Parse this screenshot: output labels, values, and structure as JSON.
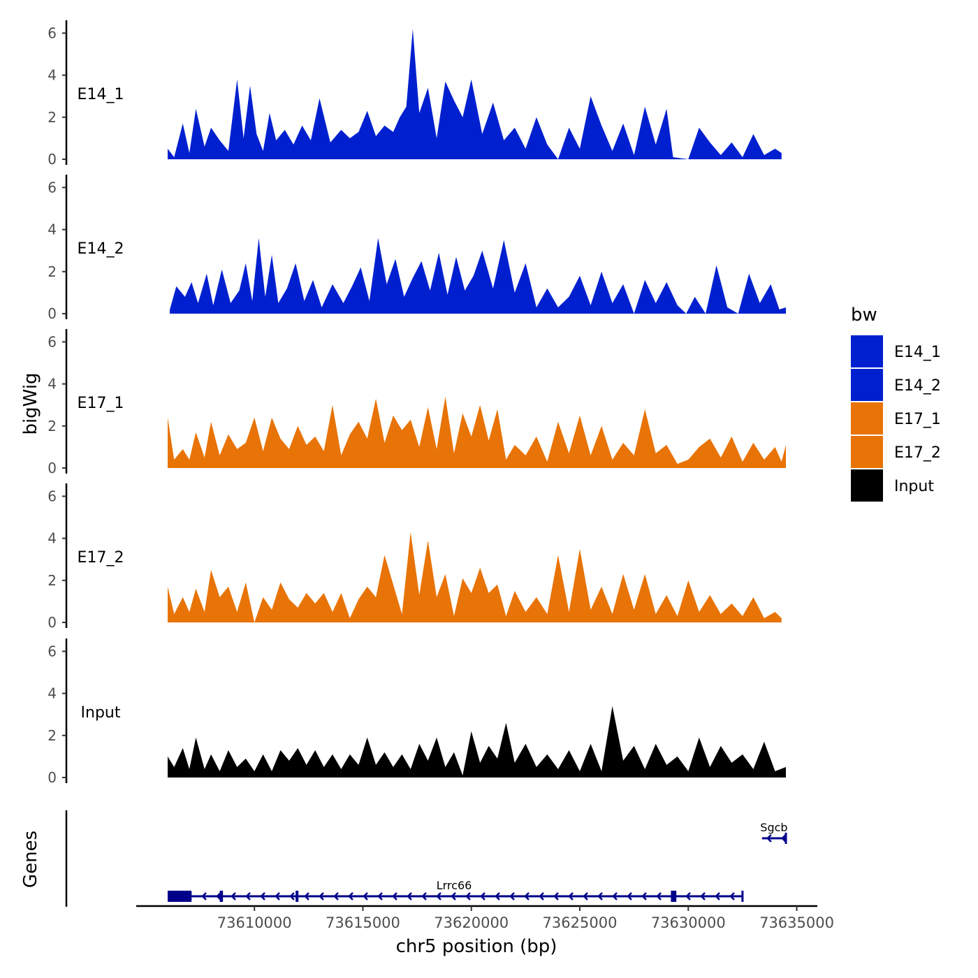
{
  "chart_data": {
    "type": "area",
    "title": "",
    "ylabel": "bigWig",
    "xlabel": "chr5 position (bp)",
    "ylim": [
      0,
      6.5
    ],
    "y_ticks": [
      0,
      2,
      4,
      6
    ],
    "xlim": [
      73606000,
      73634500
    ],
    "x_ticks": [
      73610000,
      73615000,
      73620000,
      73625000,
      73630000,
      73635000
    ],
    "x_tick_labels": [
      "73610000",
      "73615000",
      "73620000",
      "73625000",
      "73630000",
      "73635000"
    ],
    "legend": {
      "title": "bw",
      "position": "right",
      "entries": [
        {
          "label": "E14_1",
          "color": "#0020d0"
        },
        {
          "label": "E14_2",
          "color": "#0020d0"
        },
        {
          "label": "E17_1",
          "color": "#e87306"
        },
        {
          "label": "E17_2",
          "color": "#e87306"
        },
        {
          "label": "Input",
          "color": "#000000"
        }
      ]
    },
    "series": [
      {
        "name": "E14_1",
        "color": "#0020d0",
        "x": [
          73606000,
          73606300,
          73606700,
          73607000,
          73607300,
          73607700,
          73608000,
          73608400,
          73608800,
          73609200,
          73609500,
          73609800,
          73610100,
          73610400,
          73610700,
          73611000,
          73611400,
          73611800,
          73612200,
          73612600,
          73613000,
          73613500,
          73614000,
          73614400,
          73614800,
          73615200,
          73615600,
          73616000,
          73616400,
          73616700,
          73617000,
          73617300,
          73617600,
          73618000,
          73618400,
          73618800,
          73619200,
          73619600,
          73620000,
          73620500,
          73621000,
          73621500,
          73622000,
          73622500,
          73623000,
          73623500,
          73624000,
          73624500,
          73625000,
          73625500,
          73626000,
          73626500,
          73627000,
          73627500,
          73628000,
          73628500,
          73629000,
          73629300,
          73630000,
          73630500,
          73631000,
          73631500,
          73632000,
          73632500,
          73633000,
          73633500,
          73634000,
          73634300
        ],
        "y": [
          0.5,
          0.1,
          1.7,
          0.3,
          2.4,
          0.6,
          1.5,
          0.9,
          0.4,
          3.8,
          1.0,
          3.5,
          1.2,
          0.4,
          2.2,
          0.9,
          1.4,
          0.7,
          1.6,
          0.9,
          2.9,
          0.8,
          1.4,
          1.0,
          1.3,
          2.3,
          1.1,
          1.6,
          1.3,
          2.0,
          2.5,
          6.2,
          2.2,
          3.4,
          1.0,
          3.7,
          2.8,
          2.0,
          3.8,
          1.2,
          2.7,
          0.9,
          1.5,
          0.5,
          2.0,
          0.7,
          0.0,
          1.5,
          0.5,
          3.0,
          1.6,
          0.4,
          1.7,
          0.2,
          2.5,
          0.7,
          2.4,
          0.1,
          0.0,
          1.5,
          0.8,
          0.2,
          0.8,
          0.1,
          1.2,
          0.2,
          0.5,
          0.3
        ]
      },
      {
        "name": "E14_2",
        "color": "#0020d0",
        "x": [
          73606100,
          73606400,
          73606800,
          73607100,
          73607400,
          73607800,
          73608100,
          73608500,
          73608900,
          73609300,
          73609600,
          73609900,
          73610200,
          73610500,
          73610800,
          73611100,
          73611500,
          73611900,
          73612300,
          73612700,
          73613100,
          73613600,
          73614100,
          73614500,
          73614900,
          73615300,
          73615700,
          73616100,
          73616500,
          73616900,
          73617300,
          73617700,
          73618100,
          73618500,
          73618900,
          73619300,
          73619700,
          73620100,
          73620500,
          73621000,
          73621500,
          73622000,
          73622500,
          73623000,
          73623500,
          73624000,
          73624500,
          73625000,
          73625500,
          73626000,
          73626500,
          73627000,
          73627500,
          73628000,
          73628500,
          73629000,
          73629500,
          73629900,
          73630300,
          73630800,
          73631300,
          73631800,
          73632300,
          73632800,
          73633300,
          73633800,
          73634200,
          73634500
        ],
        "y": [
          0.2,
          1.3,
          0.8,
          1.5,
          0.5,
          1.9,
          0.4,
          2.1,
          0.5,
          1.1,
          2.4,
          0.6,
          3.6,
          0.8,
          2.8,
          0.5,
          1.2,
          2.4,
          0.6,
          1.6,
          0.3,
          1.4,
          0.5,
          1.3,
          2.2,
          0.6,
          3.6,
          1.4,
          2.6,
          0.8,
          1.7,
          2.5,
          1.1,
          2.9,
          0.9,
          2.7,
          1.1,
          1.8,
          3.0,
          1.2,
          3.5,
          1.0,
          2.4,
          0.3,
          1.2,
          0.3,
          0.8,
          1.8,
          0.4,
          2.0,
          0.5,
          1.4,
          0.0,
          1.6,
          0.5,
          1.5,
          0.4,
          0.0,
          0.8,
          0.0,
          2.3,
          0.3,
          0.0,
          1.9,
          0.5,
          1.4,
          0.2,
          0.3
        ]
      },
      {
        "name": "E17_1",
        "color": "#e87306",
        "x": [
          73606000,
          73606300,
          73606700,
          73607000,
          73607300,
          73607700,
          73608000,
          73608400,
          73608800,
          73609200,
          73609600,
          73610000,
          73610400,
          73610800,
          73611200,
          73611600,
          73612000,
          73612400,
          73612800,
          73613200,
          73613600,
          73614000,
          73614400,
          73614800,
          73615200,
          73615600,
          73616000,
          73616400,
          73616800,
          73617200,
          73617600,
          73618000,
          73618400,
          73618800,
          73619200,
          73619600,
          73620000,
          73620400,
          73620800,
          73621200,
          73621600,
          73622000,
          73622500,
          73623000,
          73623500,
          73624000,
          73624500,
          73625000,
          73625500,
          73626000,
          73626500,
          73627000,
          73627500,
          73628000,
          73628500,
          73629000,
          73629500,
          73630000,
          73630500,
          73631000,
          73631500,
          73632000,
          73632500,
          73633000,
          73633500,
          73634000,
          73634300,
          73634500
        ],
        "y": [
          2.4,
          0.4,
          0.9,
          0.4,
          1.7,
          0.5,
          2.2,
          0.6,
          1.6,
          0.9,
          1.2,
          2.4,
          0.8,
          2.4,
          1.4,
          0.9,
          2.0,
          1.1,
          1.5,
          0.8,
          3.0,
          0.6,
          1.6,
          2.2,
          1.4,
          3.3,
          1.2,
          2.5,
          1.8,
          2.3,
          1.0,
          2.9,
          0.9,
          3.4,
          0.7,
          2.6,
          1.5,
          3.0,
          1.3,
          2.8,
          0.4,
          1.1,
          0.6,
          1.5,
          0.3,
          2.2,
          0.7,
          2.5,
          0.6,
          2.0,
          0.4,
          1.2,
          0.6,
          2.8,
          0.7,
          1.1,
          0.2,
          0.4,
          1.0,
          1.4,
          0.5,
          1.5,
          0.3,
          1.2,
          0.4,
          1.0,
          0.3,
          1.1
        ]
      },
      {
        "name": "E17_2",
        "color": "#e87306",
        "x": [
          73606000,
          73606300,
          73606700,
          73607000,
          73607300,
          73607700,
          73608000,
          73608400,
          73608800,
          73609200,
          73609600,
          73610000,
          73610400,
          73610800,
          73611200,
          73611600,
          73612000,
          73612400,
          73612800,
          73613200,
          73613600,
          73614000,
          73614400,
          73614800,
          73615200,
          73615600,
          73616000,
          73616400,
          73616800,
          73617200,
          73617600,
          73618000,
          73618400,
          73618800,
          73619200,
          73619600,
          73620000,
          73620400,
          73620800,
          73621200,
          73621600,
          73622000,
          73622500,
          73623000,
          73623500,
          73624000,
          73624500,
          73625000,
          73625500,
          73626000,
          73626500,
          73627000,
          73627500,
          73628000,
          73628500,
          73629000,
          73629500,
          73630000,
          73630500,
          73631000,
          73631500,
          73632000,
          73632500,
          73633000,
          73633500,
          73634000,
          73634300
        ],
        "y": [
          1.7,
          0.4,
          1.2,
          0.5,
          1.6,
          0.5,
          2.5,
          1.2,
          1.7,
          0.5,
          1.9,
          0.0,
          1.2,
          0.6,
          1.9,
          1.1,
          0.7,
          1.4,
          0.9,
          1.4,
          0.5,
          1.4,
          0.2,
          1.1,
          1.7,
          1.2,
          3.2,
          1.8,
          0.4,
          4.3,
          1.3,
          3.9,
          1.2,
          2.3,
          0.3,
          2.1,
          1.4,
          2.6,
          1.4,
          1.8,
          0.3,
          1.5,
          0.5,
          1.2,
          0.4,
          3.2,
          0.5,
          3.5,
          0.6,
          1.7,
          0.4,
          2.3,
          0.6,
          2.3,
          0.4,
          1.3,
          0.3,
          2.0,
          0.5,
          1.3,
          0.4,
          0.9,
          0.3,
          1.2,
          0.2,
          0.5,
          0.2
        ]
      },
      {
        "name": "Input",
        "color": "#000000",
        "x": [
          73606000,
          73606300,
          73606700,
          73607000,
          73607300,
          73607700,
          73608000,
          73608400,
          73608800,
          73609200,
          73609600,
          73610000,
          73610400,
          73610800,
          73611200,
          73611600,
          73612000,
          73612400,
          73612800,
          73613200,
          73613600,
          73614000,
          73614400,
          73614800,
          73615200,
          73615600,
          73616000,
          73616400,
          73616800,
          73617200,
          73617600,
          73618000,
          73618400,
          73618800,
          73619200,
          73619600,
          73620000,
          73620400,
          73620800,
          73621200,
          73621600,
          73622000,
          73622500,
          73623000,
          73623500,
          73624000,
          73624500,
          73625000,
          73625500,
          73626000,
          73626500,
          73627000,
          73627500,
          73628000,
          73628500,
          73629000,
          73629500,
          73630000,
          73630500,
          73631000,
          73631500,
          73632000,
          73632500,
          73633000,
          73633500,
          73634000,
          73634500
        ],
        "y": [
          1.0,
          0.5,
          1.4,
          0.4,
          1.9,
          0.4,
          1.1,
          0.3,
          1.3,
          0.5,
          0.9,
          0.3,
          1.1,
          0.3,
          1.3,
          0.8,
          1.4,
          0.6,
          1.3,
          0.5,
          1.1,
          0.4,
          1.1,
          0.6,
          1.9,
          0.6,
          1.2,
          0.5,
          1.1,
          0.4,
          1.6,
          0.8,
          1.9,
          0.5,
          1.2,
          0.1,
          2.2,
          0.7,
          1.5,
          0.9,
          2.6,
          0.7,
          1.6,
          0.5,
          1.1,
          0.4,
          1.3,
          0.3,
          1.6,
          0.3,
          3.4,
          0.8,
          1.5,
          0.4,
          1.6,
          0.6,
          1.0,
          0.3,
          1.9,
          0.5,
          1.5,
          0.7,
          1.1,
          0.4,
          1.7,
          0.3,
          0.5
        ]
      }
    ],
    "genes_track": {
      "label": "Genes",
      "genes": [
        {
          "name": "Lrrc66",
          "strand": "-",
          "start": 73606000,
          "end": 73632500,
          "exons": [
            [
              73606000,
              73607100
            ],
            [
              73608400,
              73608550
            ],
            [
              73611900,
              73612000
            ],
            [
              73629200,
              73629450
            ]
          ]
        },
        {
          "name": "Sgcb",
          "strand": "-",
          "start": 73633400,
          "end": 73634500,
          "exons": []
        }
      ]
    }
  }
}
